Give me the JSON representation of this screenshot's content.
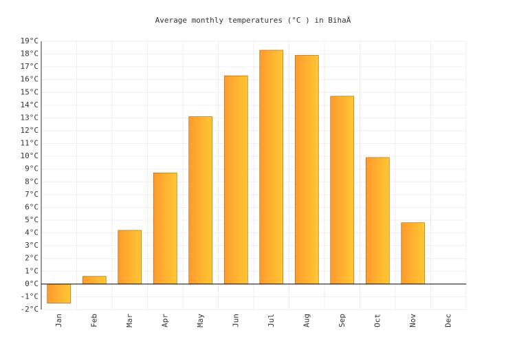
{
  "chart_data": {
    "type": "bar",
    "title": "Average monthly temperatures (°C ) in BihaÄ",
    "categories": [
      "Jan",
      "Feb",
      "Mar",
      "Apr",
      "May",
      "Jun",
      "Jul",
      "Aug",
      "Sep",
      "Oct",
      "Nov",
      "Dec"
    ],
    "values": [
      -1.5,
      0.6,
      4.2,
      8.7,
      13.1,
      16.3,
      18.3,
      17.9,
      14.7,
      9.9,
      4.8,
      null
    ],
    "color": "#ffa22e",
    "ylim": [
      -2,
      19
    ],
    "yticks": [
      {
        "value": -2,
        "label": "-2°C"
      },
      {
        "value": -1,
        "label": "-1°C"
      },
      {
        "value": 0,
        "label": "0°C"
      },
      {
        "value": 1,
        "label": "1°C"
      },
      {
        "value": 2,
        "label": "2°C"
      },
      {
        "value": 3,
        "label": "3°C"
      },
      {
        "value": 4,
        "label": "4°C"
      },
      {
        "value": 5,
        "label": "5°C"
      },
      {
        "value": 6,
        "label": "6°C"
      },
      {
        "value": 7,
        "label": "7°C"
      },
      {
        "value": 8,
        "label": "8°C"
      },
      {
        "value": 9,
        "label": "9°C"
      },
      {
        "value": 10,
        "label": "10°C"
      },
      {
        "value": 11,
        "label": "11°C"
      },
      {
        "value": 12,
        "label": "12°C"
      },
      {
        "value": 13,
        "label": "13°C"
      },
      {
        "value": 14,
        "label": "14°C"
      },
      {
        "value": 15,
        "label": "15°C"
      },
      {
        "value": 16,
        "label": "16°C"
      },
      {
        "value": 17,
        "label": "17°C"
      },
      {
        "value": 18,
        "label": "18°C"
      },
      {
        "value": 19,
        "label": "19°C"
      }
    ],
    "grid": true
  }
}
